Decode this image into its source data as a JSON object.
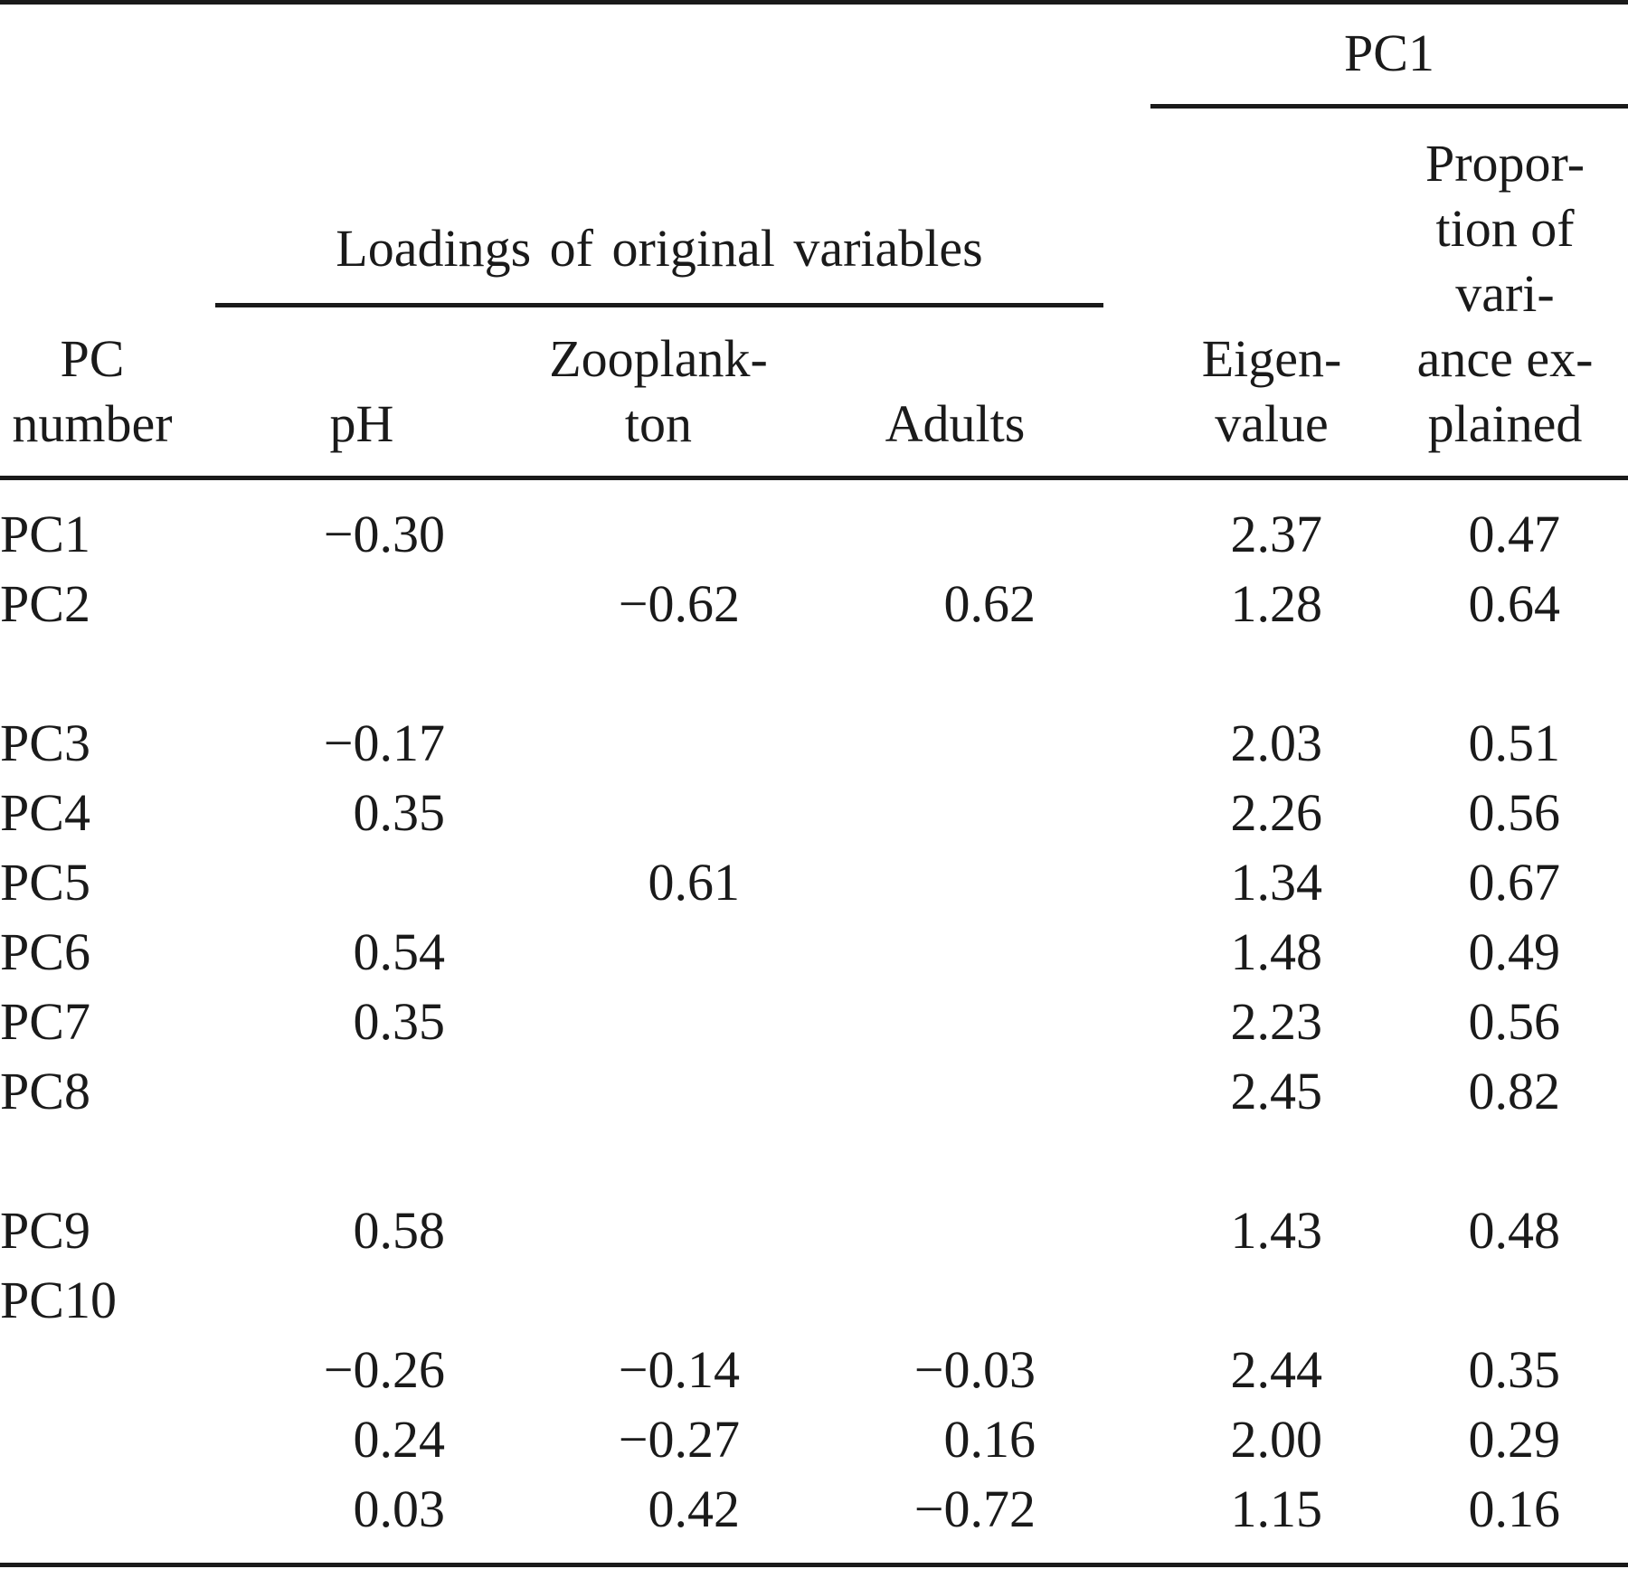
{
  "header": {
    "pc1_group": "PC1",
    "loadings_group": "Loadings of original variables",
    "col_pc": [
      "PC",
      "number"
    ],
    "col_ph": [
      "pH"
    ],
    "col_zoo": [
      "Zooplank-",
      "ton"
    ],
    "col_adults": [
      "Adults"
    ],
    "col_eigen": [
      "Eigen-",
      "value"
    ],
    "col_prop": [
      "Propor-",
      "tion of",
      "vari-",
      "ance ex-",
      "plained"
    ]
  },
  "rows": [
    {
      "pc": "PC1",
      "ph": "−0.30",
      "zoo": "",
      "adults": "",
      "eigen": "2.37",
      "prop": "0.47"
    },
    {
      "pc": "PC2",
      "ph": "",
      "zoo": "−0.62",
      "adults": "0.62",
      "eigen": "1.28",
      "prop": "0.64"
    },
    {
      "pc": "PC3",
      "ph": "−0.17",
      "zoo": "",
      "adults": "",
      "eigen": "2.03",
      "prop": "0.51"
    },
    {
      "pc": "PC4",
      "ph": "0.35",
      "zoo": "",
      "adults": "",
      "eigen": "2.26",
      "prop": "0.56"
    },
    {
      "pc": "PC5",
      "ph": "",
      "zoo": "0.61",
      "adults": "",
      "eigen": "1.34",
      "prop": "0.67"
    },
    {
      "pc": "PC6",
      "ph": "0.54",
      "zoo": "",
      "adults": "",
      "eigen": "1.48",
      "prop": "0.49"
    },
    {
      "pc": "PC7",
      "ph": "0.35",
      "zoo": "",
      "adults": "",
      "eigen": "2.23",
      "prop": "0.56"
    },
    {
      "pc": "PC8",
      "ph": "",
      "zoo": "",
      "adults": "",
      "eigen": "2.45",
      "prop": "0.82"
    },
    {
      "pc": "PC9",
      "ph": "0.58",
      "zoo": "",
      "adults": "",
      "eigen": "1.43",
      "prop": "0.48"
    },
    {
      "pc": "PC10",
      "ph": "",
      "zoo": "",
      "adults": "",
      "eigen": "",
      "prop": ""
    },
    {
      "pc": "",
      "ph": "−0.26",
      "zoo": "−0.14",
      "adults": "−0.03",
      "eigen": "2.44",
      "prop": "0.35"
    },
    {
      "pc": "",
      "ph": "0.24",
      "zoo": "−0.27",
      "adults": "0.16",
      "eigen": "2.00",
      "prop": "0.29"
    },
    {
      "pc": "",
      "ph": "0.03",
      "zoo": "0.42",
      "adults": "−0.72",
      "eigen": "1.15",
      "prop": "0.16"
    }
  ]
}
